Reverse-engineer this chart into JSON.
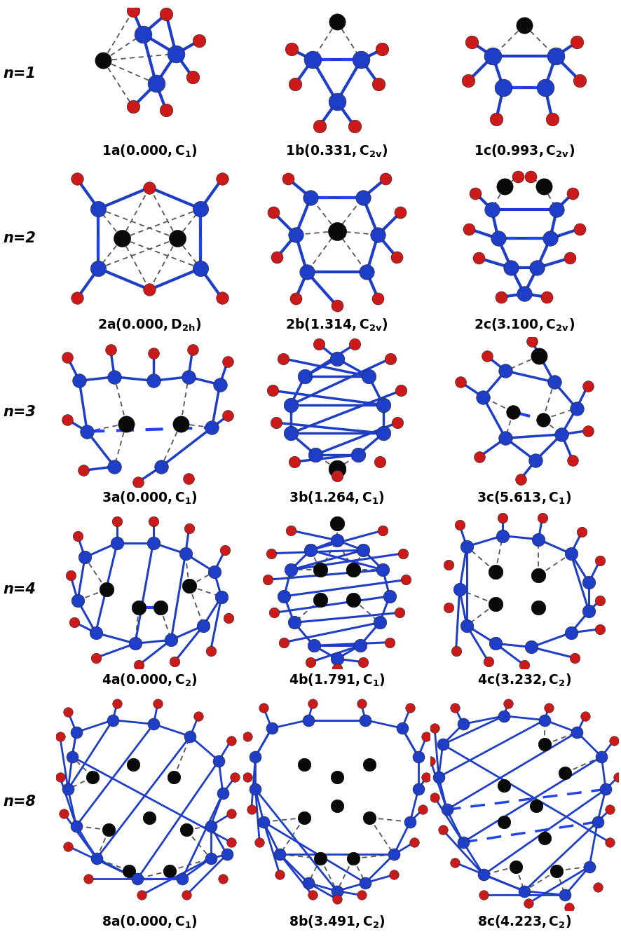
{
  "background_color": "#ffffff",
  "label_fontsize": 13.5,
  "row_label_fontsize": 15,
  "label_parts": [
    [
      {
        "prefix": "1a",
        "value": " (0.000, C",
        "sub": "1",
        "end": ")"
      },
      {
        "prefix": "1b",
        "value": " (0.331, C",
        "sub": "2v",
        "end": ")"
      },
      {
        "prefix": "1c",
        "value": " (0.993, C",
        "sub": "2v",
        "end": ")"
      }
    ],
    [
      {
        "prefix": "2a",
        "value": " (0.000, D",
        "sub": "2h",
        "end": ")"
      },
      {
        "prefix": "2b",
        "value": " (1.314, C",
        "sub": "2v",
        "end": ")"
      },
      {
        "prefix": "2c",
        "value": " (3.100, C",
        "sub": "2v",
        "end": ")"
      }
    ],
    [
      {
        "prefix": "3a",
        "value": " (0.000, C",
        "sub": "1",
        "end": ")"
      },
      {
        "prefix": "3b",
        "value": " (1.264, C",
        "sub": "1",
        "end": ")"
      },
      {
        "prefix": "3c",
        "value": " (5.613, C",
        "sub": "1",
        "end": ")"
      }
    ],
    [
      {
        "prefix": "4a",
        "value": " (0.000, C",
        "sub": "2",
        "end": ")"
      },
      {
        "prefix": "4b",
        "value": " (1.791, C",
        "sub": "1",
        "end": ")"
      },
      {
        "prefix": "4c",
        "value": " (3.232, C",
        "sub": "2",
        "end": ")"
      }
    ],
    [
      {
        "prefix": "8a",
        "value": " (0.000, C",
        "sub": "1",
        "end": ")"
      },
      {
        "prefix": "8b",
        "value": " (3.491, C",
        "sub": "2",
        "end": ")"
      },
      {
        "prefix": "8c",
        "value": " (4.223, C",
        "sub": "2",
        "end": ")"
      }
    ]
  ],
  "blue": "#1e3ec8",
  "red": "#cc1a1a",
  "black": "#0a0a0a",
  "bond_blue": "#1e3ec8",
  "bond_gray": "#555555",
  "bond_blue_dash": "#2244ee"
}
